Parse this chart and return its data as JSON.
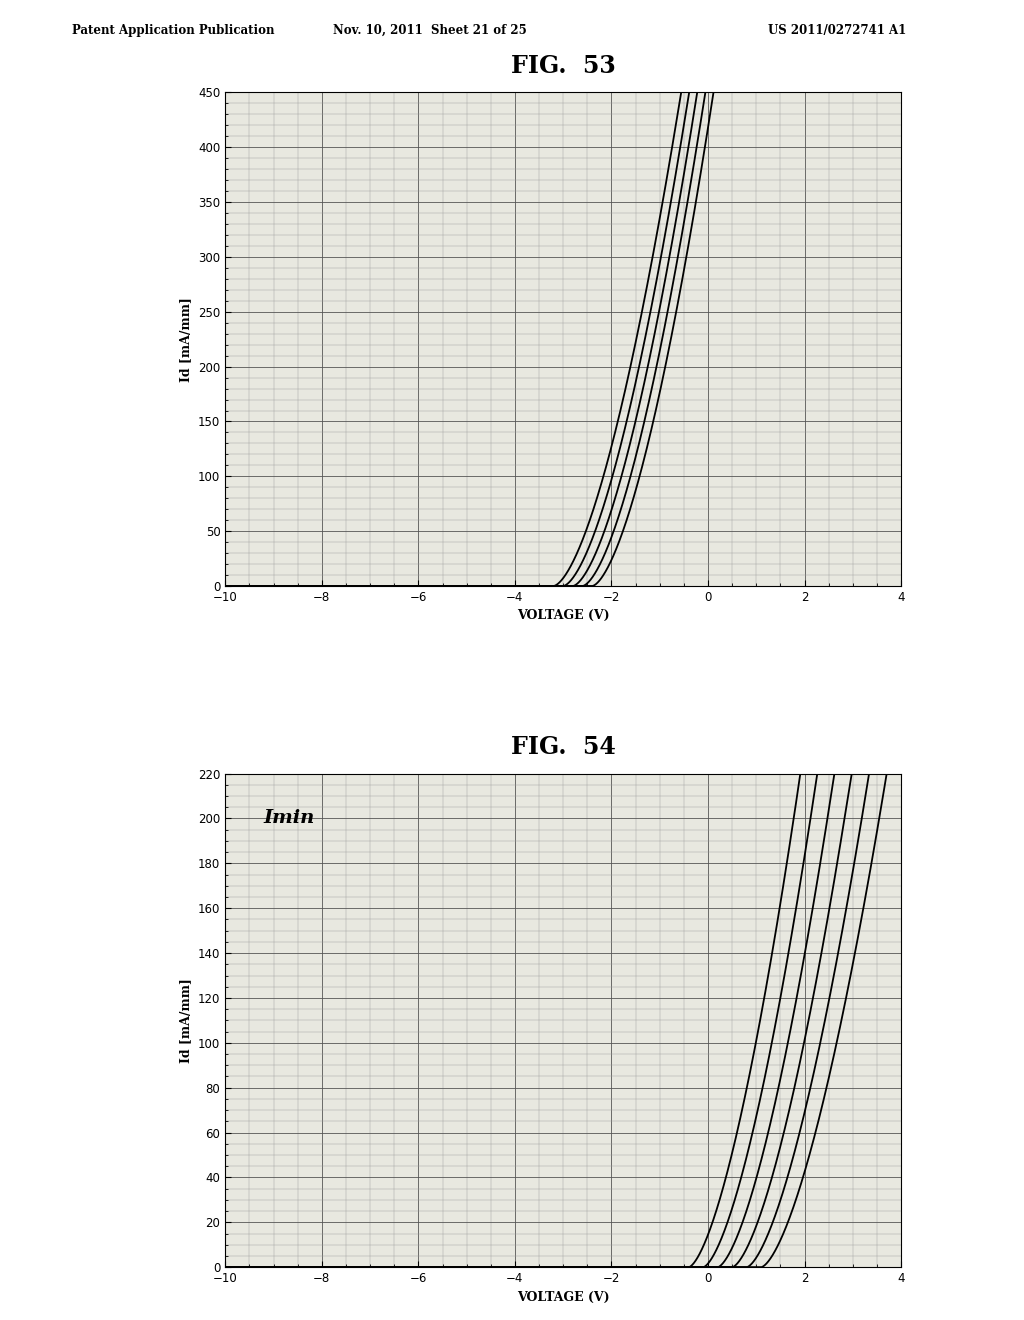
{
  "fig53_title": "FIG.  53",
  "fig54_title": "FIG.  54",
  "header_left": "Patent Application Publication",
  "header_mid": "Nov. 10, 2011  Sheet 21 of 25",
  "header_right": "US 2011/0272741 A1",
  "xlabel": "VOLTAGE (V)",
  "ylabel": "Id [mA/mm]",
  "fig53_ylim": [
    0,
    450
  ],
  "fig53_yticks": [
    0,
    50,
    100,
    150,
    200,
    250,
    300,
    350,
    400,
    450
  ],
  "fig54_ylim": [
    0,
    220
  ],
  "fig54_yticks": [
    0,
    20,
    40,
    60,
    80,
    100,
    120,
    140,
    160,
    180,
    200,
    220
  ],
  "xlim": [
    -10,
    4
  ],
  "xticks": [
    -10,
    -8,
    -6,
    -4,
    -2,
    0,
    2,
    4
  ],
  "fig54_annotation": "Imin",
  "background_color": "#e8e8e0",
  "line_color": "#000000",
  "grid_major_color": "#555555",
  "grid_minor_color": "#999999"
}
